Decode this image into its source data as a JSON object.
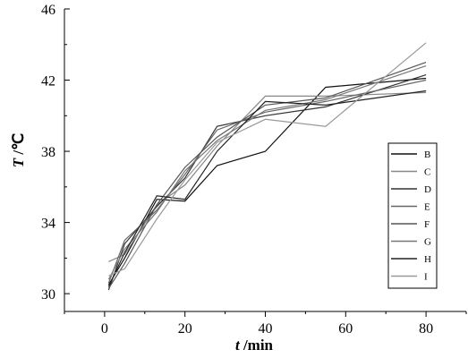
{
  "chart_data": {
    "type": "line",
    "title": "",
    "xlabel": {
      "var": "t",
      "unit": " /min"
    },
    "ylabel": {
      "var": "T",
      "unit": " /℃"
    },
    "xlim": [
      -10,
      90
    ],
    "ylim": [
      29,
      46
    ],
    "xticks": [
      0,
      20,
      40,
      60,
      80
    ],
    "yticks": [
      30,
      34,
      38,
      42,
      46
    ],
    "grid": false,
    "legend_position": "right",
    "x": [
      1,
      5,
      13,
      20,
      28,
      40,
      55,
      80
    ],
    "series": [
      {
        "name": "B",
        "color": "#111111",
        "values": [
          30.5,
          32.0,
          35.3,
          35.2,
          37.2,
          38.0,
          41.6,
          42.1
        ]
      },
      {
        "name": "C",
        "color": "#888888",
        "values": [
          31.8,
          32.2,
          35.0,
          36.1,
          38.3,
          41.1,
          41.1,
          41.3
        ]
      },
      {
        "name": "D",
        "color": "#333333",
        "values": [
          30.2,
          32.8,
          34.9,
          36.5,
          39.4,
          40.0,
          40.5,
          42.3
        ]
      },
      {
        "name": "E",
        "color": "#666666",
        "values": [
          30.6,
          33.0,
          34.7,
          36.7,
          39.2,
          40.2,
          40.8,
          42.0
        ]
      },
      {
        "name": "F",
        "color": "#555555",
        "values": [
          30.3,
          31.7,
          35.0,
          37.1,
          38.8,
          40.6,
          41.0,
          43.0
        ]
      },
      {
        "name": "G",
        "color": "#777777",
        "values": [
          30.8,
          32.5,
          34.6,
          36.9,
          38.6,
          40.3,
          40.9,
          42.8
        ]
      },
      {
        "name": "H",
        "color": "#222222",
        "values": [
          30.4,
          32.3,
          35.5,
          35.3,
          38.0,
          40.8,
          40.6,
          41.4
        ]
      },
      {
        "name": "I",
        "color": "#999999",
        "values": [
          31.0,
          31.4,
          34.2,
          36.4,
          38.5,
          39.8,
          39.4,
          44.1
        ]
      }
    ]
  }
}
